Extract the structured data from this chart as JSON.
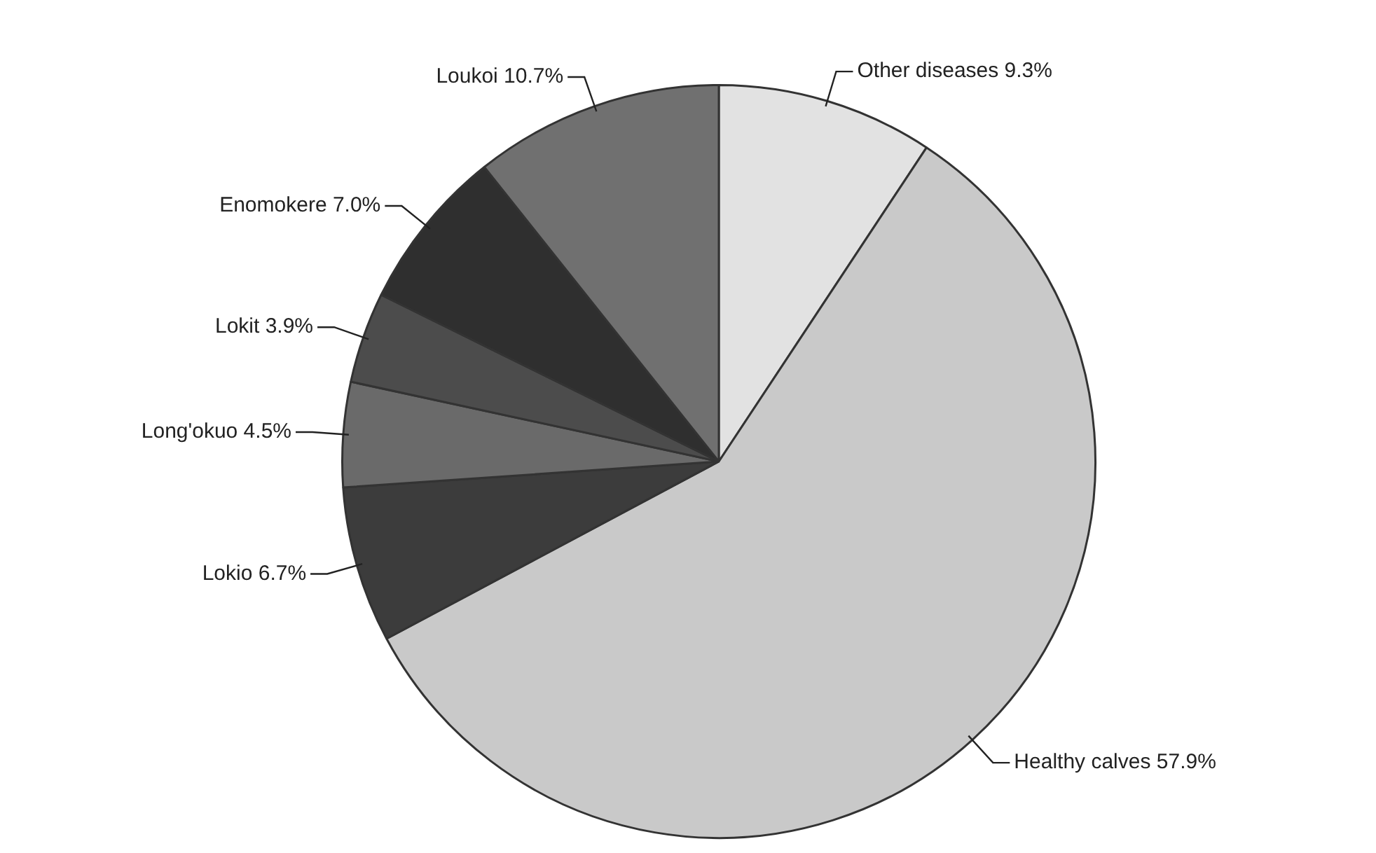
{
  "chart_data": {
    "type": "pie",
    "categories": [
      "Other diseases",
      "Healthy calves",
      "Lokio",
      "Long'okuo",
      "Lokit",
      "Enomokere",
      "Loukoi"
    ],
    "values": [
      9.3,
      57.9,
      6.7,
      4.5,
      3.9,
      7.0,
      10.7
    ],
    "value_labels": [
      "9.3%",
      "57.9%",
      "6.7%",
      "4.5%",
      "3.9%",
      "7.0%",
      "10.7%"
    ],
    "colors": [
      "#e2e2e2",
      "#c9c9c9",
      "#3c3c3c",
      "#6a6a6a",
      "#4c4c4c",
      "#2f2f2f",
      "#707070"
    ],
    "legend": false
  }
}
